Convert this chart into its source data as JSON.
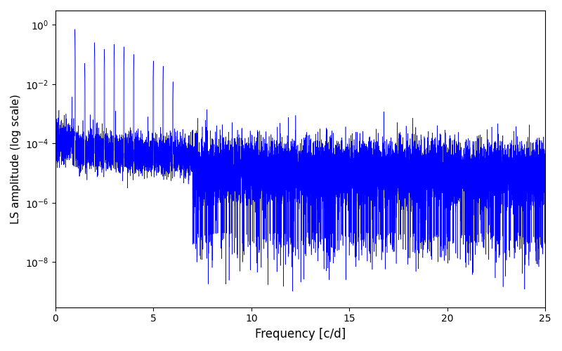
{
  "xlabel": "Frequency [c/d]",
  "ylabel": "LS amplitude (log scale)",
  "xlim": [
    0,
    25
  ],
  "ylim": [
    3e-10,
    3.0
  ],
  "line_color": "#0000ff",
  "line_width": 0.4,
  "yscale": "log",
  "figsize": [
    8.0,
    5.0
  ],
  "dpi": 100,
  "background_color": "#ffffff",
  "seed": 12345,
  "n_points": 15000,
  "freq_max": 25.0
}
